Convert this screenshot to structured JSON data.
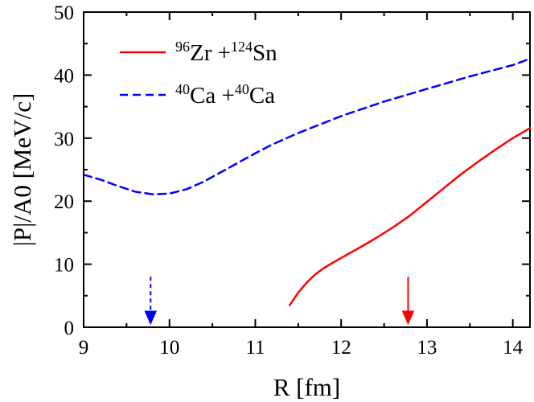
{
  "chart_data": {
    "type": "line",
    "title": "",
    "xlabel": "R [fm]",
    "ylabel": "|P|/A0 [MeV/c]",
    "xlim": [
      9,
      14.2
    ],
    "ylim": [
      0,
      50
    ],
    "xticks": [
      9,
      10,
      11,
      12,
      13,
      14
    ],
    "yticks": [
      0,
      10,
      20,
      30,
      40,
      50
    ],
    "grid": false,
    "legend_position": "top-left",
    "series": [
      {
        "name": "96Zr + 124Sn",
        "legend": {
          "mass_a": "96",
          "symbol_a": "Zr",
          "plus": "+",
          "mass_b": "124",
          "symbol_b": "Sn"
        },
        "color": "#ff0000",
        "line_style": "solid",
        "x": [
          11.4,
          11.5,
          11.6,
          11.7,
          11.8,
          11.9,
          12.0,
          12.2,
          12.4,
          12.6,
          12.8,
          13.0,
          13.2,
          13.4,
          13.6,
          13.8,
          14.0,
          14.2
        ],
        "y": [
          3.5,
          5.5,
          7.1,
          8.4,
          9.4,
          10.2,
          11.0,
          12.5,
          14.1,
          15.8,
          17.7,
          19.9,
          22.1,
          24.3,
          26.3,
          28.2,
          30.0,
          31.6
        ]
      },
      {
        "name": "40Ca + 40Ca",
        "legend": {
          "mass_a": "40",
          "symbol_a": "Ca",
          "plus": "+",
          "mass_b": "40",
          "symbol_b": "Ca"
        },
        "color": "#0000ff",
        "line_style": "dashed",
        "x": [
          9.0,
          9.2,
          9.4,
          9.6,
          9.8,
          10.0,
          10.2,
          10.4,
          10.6,
          10.8,
          11.0,
          11.2,
          11.5,
          12.0,
          12.5,
          13.0,
          13.5,
          14.0,
          14.2
        ],
        "y": [
          24.2,
          23.4,
          22.4,
          21.5,
          21.1,
          21.2,
          21.9,
          23.1,
          24.6,
          26.1,
          27.6,
          29.0,
          30.8,
          33.5,
          35.8,
          37.8,
          39.8,
          41.6,
          42.6
        ]
      }
    ],
    "annotations": [
      {
        "type": "arrow",
        "name": "blue-arrow",
        "x": 9.78,
        "y_start": 8.0,
        "y_end": 0,
        "color": "#0000ff",
        "line_style": "dashed"
      },
      {
        "type": "arrow",
        "name": "red-arrow",
        "x": 12.78,
        "y_start": 8.0,
        "y_end": 0,
        "color": "#ff0000",
        "line_style": "solid"
      }
    ]
  }
}
